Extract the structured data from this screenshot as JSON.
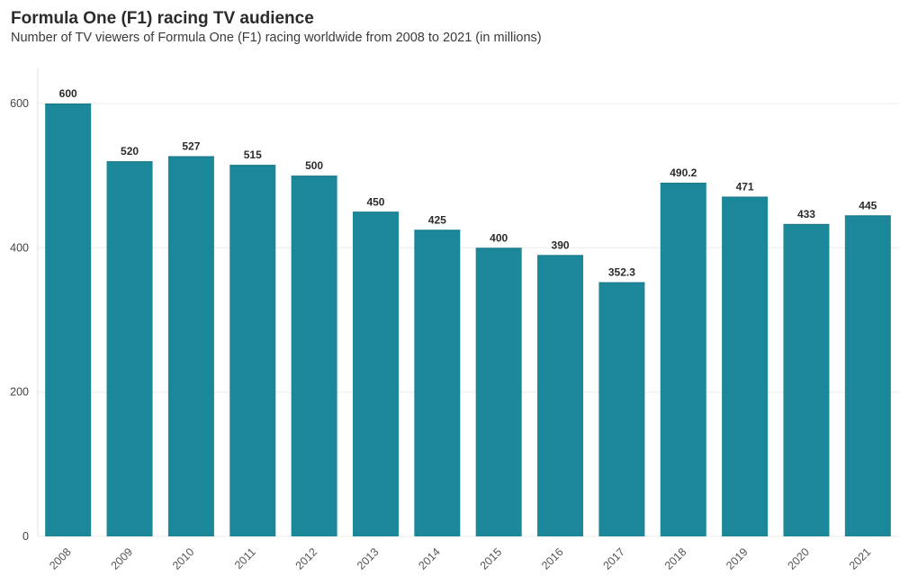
{
  "chart_data": {
    "type": "bar",
    "title": "Formula One (F1) racing TV audience",
    "subtitle": "Number of TV viewers of Formula One (F1) racing worldwide from 2008 to 2021 (in millions)",
    "categories": [
      "2008",
      "2009",
      "2010",
      "2011",
      "2012",
      "2013",
      "2014",
      "2015",
      "2016",
      "2017",
      "2018",
      "2019",
      "2020",
      "2021"
    ],
    "values": [
      600,
      520,
      527,
      515,
      500,
      450,
      425,
      400,
      390,
      352.3,
      490.2,
      471,
      433,
      445
    ],
    "value_labels": [
      "600",
      "520",
      "527",
      "515",
      "500",
      "450",
      "425",
      "400",
      "390",
      "352.3",
      "490.2",
      "471",
      "433",
      "445"
    ],
    "yticks": [
      0,
      200,
      400,
      600
    ],
    "ytick_labels": [
      "0",
      "200",
      "400",
      "600"
    ],
    "ylim": [
      0,
      650
    ],
    "xlabel": "",
    "ylabel": "",
    "grid": true,
    "bar_color": "#1b8799"
  }
}
